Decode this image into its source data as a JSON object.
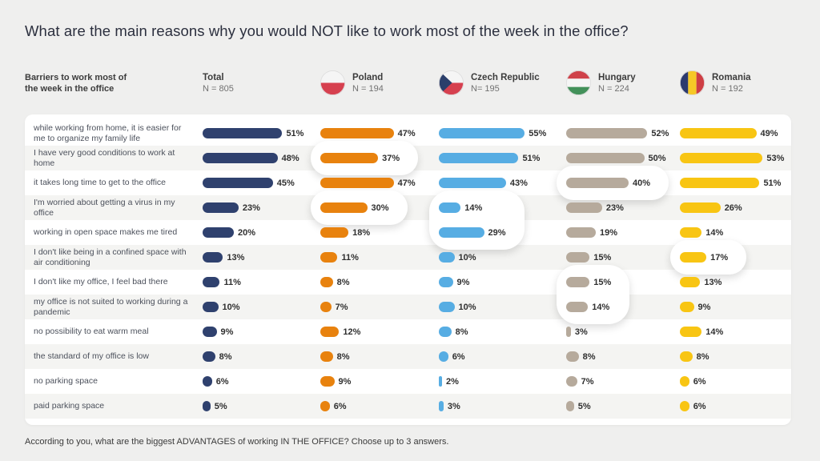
{
  "header": {
    "title": "What are the main reasons why you would NOT like to work most of the week in the office?",
    "caption": "Barriers to work most of\nthe week in the office"
  },
  "footer": {
    "text": "According to you, what are the biggest ADVANTAGES of working IN THE OFFICE? Choose up to 3 answers."
  },
  "colors": {
    "page_background": "#efefee",
    "card_background": "#ffffff",
    "row_stripe": "#f4f4f2",
    "total_bar": "#2f416e",
    "poland_bar": "#e8820e",
    "czech_bar": "#57ade3",
    "hungary_bar": "#b6aa9c",
    "romania_bar": "#f8c513"
  },
  "chart_data": {
    "type": "bar",
    "orientation": "horizontal",
    "unit": "%",
    "title": "What are the main reasons why you would NOT like to work most of the week in the office?",
    "xlim": [
      0,
      60
    ],
    "grid": false,
    "legend_position": "top",
    "categories": [
      "while working from home, it is easier for me to organize my family life",
      "I have very good conditions to work at home",
      "it takes long time to get to the office",
      "I'm worried about getting a virus in my office",
      "working in open space makes me tired",
      "I don't like being in a confined space with air conditioning",
      "I don't like my office, I feel bad there",
      "my office is not suited to working during a pandemic",
      "no possibility to eat warm meal",
      "the standard of my office is low",
      "no parking space",
      "paid parking space"
    ],
    "series": [
      {
        "name": "Total",
        "n_label": "N = 805",
        "flag": null,
        "color": "#2f416e",
        "values": [
          51,
          48,
          45,
          23,
          20,
          13,
          11,
          10,
          9,
          8,
          6,
          5
        ]
      },
      {
        "name": "Poland",
        "n_label": "N = 194",
        "flag": "poland-flag-icon",
        "color": "#e8820e",
        "values": [
          47,
          37,
          47,
          30,
          18,
          11,
          8,
          7,
          12,
          8,
          9,
          6
        ]
      },
      {
        "name": "Czech Republic",
        "n_label": "N= 195",
        "flag": "czech-republic-flag-icon",
        "color": "#57ade3",
        "values": [
          55,
          51,
          43,
          14,
          29,
          10,
          9,
          10,
          8,
          6,
          2,
          3
        ]
      },
      {
        "name": "Hungary",
        "n_label": "N = 224",
        "flag": "hungary-flag-icon",
        "color": "#b6aa9c",
        "values": [
          52,
          50,
          40,
          23,
          19,
          15,
          15,
          14,
          3,
          8,
          7,
          5
        ]
      },
      {
        "name": "Romania",
        "n_label": "N = 192",
        "flag": "romania-flag-icon",
        "color": "#f8c513",
        "values": [
          49,
          53,
          51,
          26,
          14,
          17,
          13,
          9,
          14,
          8,
          6,
          6
        ]
      }
    ],
    "highlights": [
      {
        "series": 1,
        "row": 1,
        "span": 1
      },
      {
        "series": 1,
        "row": 3,
        "span": 1
      },
      {
        "series": 2,
        "row": 3,
        "span": 2
      },
      {
        "series": 3,
        "row": 2,
        "span": 1
      },
      {
        "series": 3,
        "row": 6,
        "span": 2
      },
      {
        "series": 4,
        "row": 5,
        "span": 1
      }
    ]
  }
}
